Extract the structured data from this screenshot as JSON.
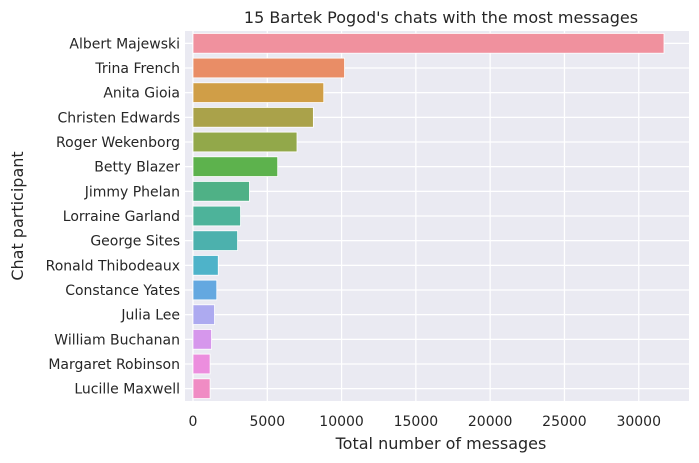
{
  "chart_data": {
    "type": "bar",
    "orientation": "horizontal",
    "title": "15 Bartek Pogod's chats with the most messages",
    "xlabel": "Total number of messages",
    "ylabel": "Chat participant",
    "xlim": [
      0,
      33000
    ],
    "xticks": [
      0,
      5000,
      10000,
      15000,
      20000,
      25000,
      30000
    ],
    "xtick_labels": [
      "0",
      "5000",
      "10000",
      "15000",
      "20000",
      "25000",
      "30000"
    ],
    "grid": true,
    "categories": [
      "Albert Majewski",
      "Trina French",
      "Anita Gioia",
      "Christen Edwards",
      "Roger Wekenborg",
      "Betty Blazer",
      "Jimmy Phelan",
      "Lorraine Garland",
      "George Sites",
      "Ronald Thibodeaux",
      "Constance Yates",
      "Julia Lee",
      "William Buchanan",
      "Margaret Robinson",
      "Lucille Maxwell"
    ],
    "values": [
      31700,
      10200,
      8800,
      8100,
      7000,
      5700,
      3800,
      3200,
      3000,
      1700,
      1600,
      1450,
      1250,
      1150,
      1150
    ],
    "colors": [
      "#f0919e",
      "#e98d66",
      "#d09e47",
      "#aaa24a",
      "#92a84a",
      "#5db24d",
      "#4fb186",
      "#4db39a",
      "#4cb1ad",
      "#4eb3c9",
      "#64a8e0",
      "#adaaf0",
      "#d697ec",
      "#ec8ede",
      "#f08cc4"
    ]
  }
}
